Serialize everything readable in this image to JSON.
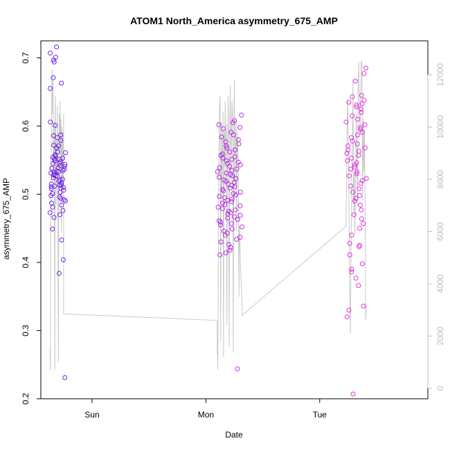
{
  "chart_data": {
    "type": "scatter",
    "title": "ATOM1 North_America asymmetry_675_AMP",
    "xlabel": "Date",
    "ylabel": "asymmetry_675_AMP",
    "xlim": [
      0.0,
      3.4
    ],
    "ylim": [
      0.2,
      0.725
    ],
    "x_ticks": [
      {
        "value": 0.45,
        "label": "Sun"
      },
      {
        "value": 1.45,
        "label": "Mon"
      },
      {
        "value": 2.45,
        "label": "Tue"
      }
    ],
    "y_ticks": [
      0.2,
      0.3,
      0.4,
      0.5,
      0.6,
      0.7
    ],
    "y2_ticks": [
      0,
      2000,
      4000,
      6000,
      8000,
      10000,
      12000
    ],
    "y2lim": [
      -400,
      13300
    ],
    "grid": false,
    "series": [
      {
        "kind": "points",
        "color_start": "#6a1fe6",
        "color_end": "#e62fe0",
        "clusters": [
          {
            "x_range": [
              0.08,
              0.22
            ],
            "values": [
              0.716,
              0.707,
              0.701,
              0.697,
              0.694,
              0.671,
              0.663,
              0.655,
              0.606,
              0.601,
              0.587,
              0.586,
              0.583,
              0.579,
              0.572,
              0.571,
              0.568,
              0.562,
              0.561,
              0.558,
              0.556,
              0.554,
              0.553,
              0.552,
              0.551,
              0.549,
              0.548,
              0.546,
              0.545,
              0.544,
              0.542,
              0.541,
              0.539,
              0.538,
              0.537,
              0.535,
              0.534,
              0.533,
              0.532,
              0.531,
              0.529,
              0.528,
              0.527,
              0.526,
              0.524,
              0.522,
              0.521,
              0.519,
              0.517,
              0.515,
              0.514,
              0.513,
              0.512,
              0.511,
              0.51,
              0.509,
              0.508,
              0.506,
              0.503,
              0.501,
              0.498,
              0.496,
              0.494,
              0.492,
              0.49,
              0.487,
              0.484,
              0.481,
              0.476,
              0.473,
              0.47,
              0.466,
              0.449,
              0.433,
              0.404,
              0.384,
              0.231
            ]
          },
          {
            "x_range": [
              1.55,
              1.77
            ],
            "values": [
              0.616,
              0.608,
              0.605,
              0.602,
              0.598,
              0.596,
              0.591,
              0.587,
              0.584,
              0.58,
              0.577,
              0.574,
              0.571,
              0.568,
              0.565,
              0.562,
              0.559,
              0.557,
              0.555,
              0.553,
              0.551,
              0.549,
              0.547,
              0.545,
              0.543,
              0.541,
              0.539,
              0.537,
              0.535,
              0.533,
              0.531,
              0.529,
              0.527,
              0.525,
              0.523,
              0.521,
              0.519,
              0.517,
              0.515,
              0.513,
              0.511,
              0.509,
              0.507,
              0.505,
              0.503,
              0.501,
              0.499,
              0.497,
              0.495,
              0.493,
              0.491,
              0.489,
              0.487,
              0.485,
              0.483,
              0.481,
              0.479,
              0.477,
              0.475,
              0.473,
              0.471,
              0.469,
              0.467,
              0.465,
              0.463,
              0.461,
              0.459,
              0.457,
              0.455,
              0.452,
              0.449,
              0.446,
              0.443,
              0.44,
              0.437,
              0.434,
              0.43,
              0.426,
              0.422,
              0.418,
              0.414,
              0.411,
              0.244
            ]
          },
          {
            "x_range": [
              2.68,
              2.86
            ],
            "values": [
              0.685,
              0.677,
              0.666,
              0.645,
              0.643,
              0.638,
              0.635,
              0.633,
              0.631,
              0.628,
              0.625,
              0.62,
              0.615,
              0.61,
              0.606,
              0.602,
              0.598,
              0.595,
              0.591,
              0.587,
              0.583,
              0.578,
              0.574,
              0.571,
              0.568,
              0.565,
              0.563,
              0.56,
              0.557,
              0.553,
              0.549,
              0.546,
              0.543,
              0.54,
              0.537,
              0.533,
              0.53,
              0.527,
              0.523,
              0.52,
              0.516,
              0.512,
              0.508,
              0.503,
              0.498,
              0.494,
              0.49,
              0.484,
              0.477,
              0.47,
              0.464,
              0.457,
              0.45,
              0.44,
              0.428,
              0.425,
              0.423,
              0.411,
              0.398,
              0.39,
              0.386,
              0.377,
              0.366,
              0.336,
              0.33,
              0.32,
              0.207
            ]
          }
        ]
      },
      {
        "kind": "line",
        "axis": "right",
        "color": "#c8c8c8",
        "clusters": [
          {
            "x_range": [
              0.08,
              0.2
            ],
            "values": [
              1500,
              700,
              6000,
              9500,
              11000,
              12200,
              10500,
              11800,
              8000,
              9000,
              10200,
              700,
              11200,
              10000,
              7000,
              9500,
              8200,
              10800,
              6500,
              1000,
              7800,
              10500,
              9000,
              11000,
              8500,
              10300,
              6000,
              10000,
              7700,
              9800,
              8000,
              10500
            ]
          },
          {
            "x_range": [
              1.55,
              1.77
            ],
            "values": [
              1500,
              700,
              6500,
              9000,
              10800,
              11200,
              1800,
              10200,
              7500,
              9000,
              10600,
              1200,
              9800,
              8500,
              11000,
              7800,
              10100,
              2400,
              8800,
              11200,
              9300,
              1600,
              10200,
              11600,
              7900,
              9800,
              11000,
              10400,
              1400,
              9600,
              11800,
              7400,
              9500,
              10300,
              6000,
              9000,
              9800,
              8400,
              3500,
              6200,
              5500,
              4600,
              3900,
              3500,
              2800
            ]
          },
          {
            "x_range": [
              2.68,
              2.86
            ],
            "values": [
              6200,
              7500,
              10300,
              11000,
              8800,
              6800,
              3300,
              2100,
              5000,
              7800,
              9100,
              11800,
              6800,
              8200,
              5900,
              7800,
              10500,
              9000,
              7000,
              11500,
              12500,
              10900,
              9800,
              11100,
              12500,
              12500,
              7200,
              10300,
              8300,
              9900,
              6800,
              2600,
              3200
            ]
          }
        ],
        "connectors": [
          {
            "x": [
              0.2,
              1.55
            ],
            "values": [
              2850,
              2600
            ]
          },
          {
            "x": [
              1.77,
              2.68
            ],
            "values": [
              2800,
              6200
            ]
          }
        ]
      }
    ]
  }
}
